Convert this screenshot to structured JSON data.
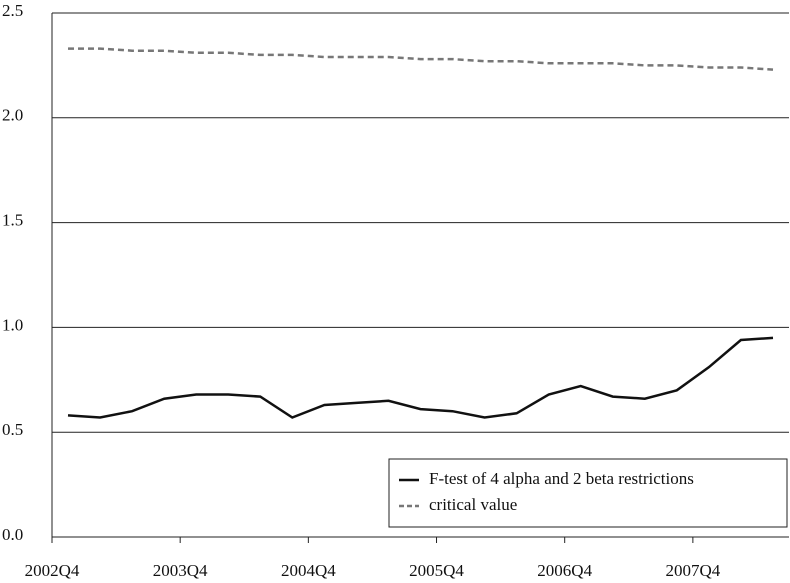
{
  "chart_data": {
    "type": "line",
    "categories": [
      "2002Q4",
      null,
      null,
      null,
      "2003Q4",
      null,
      null,
      null,
      "2004Q4",
      null,
      null,
      null,
      "2005Q4",
      null,
      null,
      null,
      "2006Q4",
      null,
      null,
      null,
      "2007Q4",
      null,
      null
    ],
    "series": [
      {
        "name": "F-test of 4 alpha and 2 beta restrictions",
        "color": "#111111",
        "dash": false,
        "values": [
          0.58,
          0.57,
          0.6,
          0.66,
          0.68,
          0.68,
          0.67,
          0.57,
          0.63,
          0.64,
          0.65,
          0.61,
          0.6,
          0.57,
          0.59,
          0.68,
          0.72,
          0.67,
          0.66,
          0.7,
          0.81,
          0.94,
          0.95
        ]
      },
      {
        "name": "critical value",
        "color": "#777777",
        "dash": true,
        "values": [
          2.33,
          2.33,
          2.32,
          2.32,
          2.31,
          2.31,
          2.3,
          2.3,
          2.29,
          2.29,
          2.29,
          2.28,
          2.28,
          2.27,
          2.27,
          2.26,
          2.26,
          2.26,
          2.25,
          2.25,
          2.24,
          2.24,
          2.23
        ]
      }
    ],
    "ylim": [
      0,
      2.5
    ],
    "yticks": [
      {
        "value": 0,
        "label": "0.0"
      },
      {
        "value": 0.5,
        "label": "0.5"
      },
      {
        "value": 1,
        "label": "1.0"
      },
      {
        "value": 1.5,
        "label": "1.5"
      },
      {
        "value": 2,
        "label": "2.0"
      },
      {
        "value": 2.5,
        "label": "2.5"
      }
    ],
    "grid": true,
    "legend": "bottom-right"
  }
}
